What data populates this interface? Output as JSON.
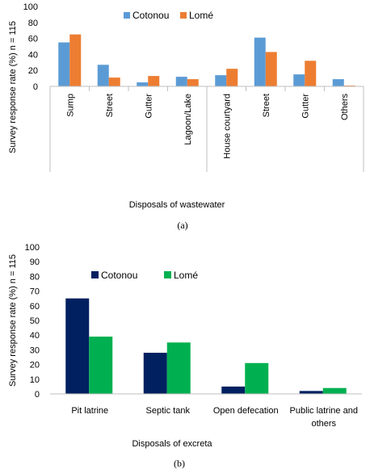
{
  "chart_data": [
    {
      "type": "bar",
      "ylabel": "Survey response rate  (%) n = 115",
      "xlabel": "Disposals of wastewater",
      "caption": "(a)",
      "ylim": [
        0,
        100
      ],
      "yticks": [
        "0",
        "20",
        "40",
        "60",
        "80",
        "100"
      ],
      "categories": [
        "Sump",
        "Street",
        "Gutter",
        "Lagoon/Lake",
        "House courtyard",
        "Street",
        "Gutter",
        "Others"
      ],
      "series": [
        {
          "name": "Cotonou",
          "color": "#5B9BD5",
          "values": [
            55,
            27,
            5,
            12,
            14,
            61,
            15,
            9
          ]
        },
        {
          "name": "Lomé",
          "color": "#ED7D31",
          "values": [
            65,
            11,
            13,
            9,
            22,
            43,
            32,
            1
          ]
        }
      ],
      "legend": "top"
    },
    {
      "type": "bar",
      "ylabel": "Survey response rate  (%) n = 115",
      "xlabel": "Disposals of excreta",
      "caption": "(b)",
      "ylim": [
        0,
        100
      ],
      "yticks": [
        "0",
        "10",
        "20",
        "30",
        "40",
        "50",
        "60",
        "70",
        "80",
        "90",
        "100"
      ],
      "categories": [
        [
          "Pit latrine"
        ],
        [
          "Septic tank"
        ],
        [
          "Open defecation"
        ],
        [
          "Public latrine and",
          "others"
        ]
      ],
      "series": [
        {
          "name": "Cotonou",
          "color": "#002060",
          "values": [
            65,
            28,
            5,
            2
          ]
        },
        {
          "name": "Lomé",
          "color": "#00B050",
          "values": [
            39,
            35,
            21,
            4
          ]
        }
      ],
      "legend": "top"
    }
  ]
}
